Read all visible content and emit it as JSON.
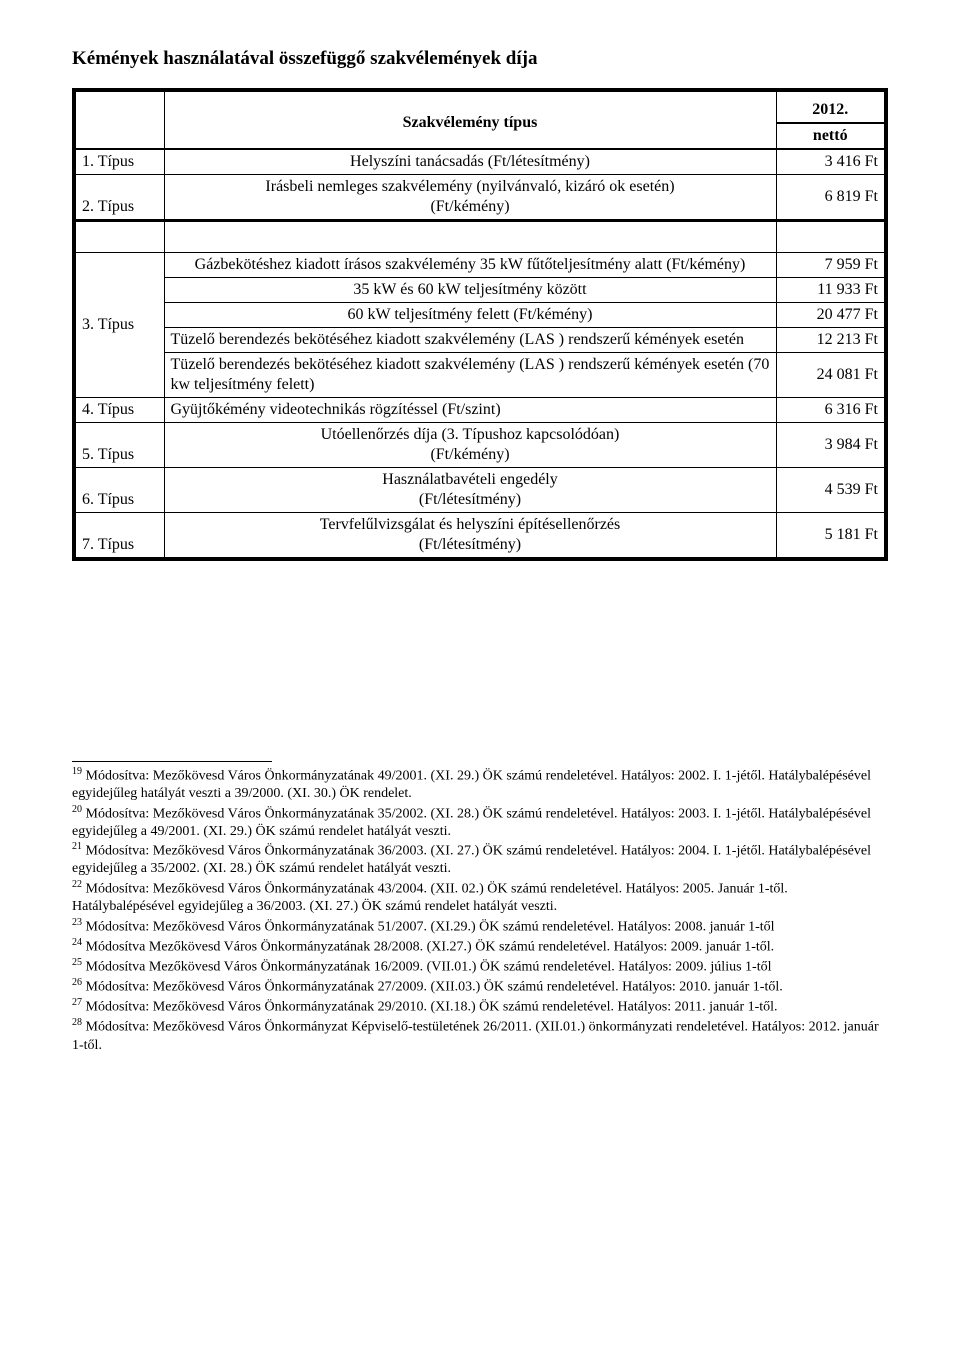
{
  "page_title": "Kémények használatával összefüggő szakvélemények díja",
  "table": {
    "header_col_type": "Szakvélemény típus",
    "header_year": "2012.",
    "header_netto": "nettó",
    "rows_a": [
      {
        "type": "1. Típus",
        "desc": "Helyszíni tanácsadás (Ft/létesítmény)",
        "value": "3 416 Ft"
      },
      {
        "type": "2. Típus",
        "desc": "Irásbeli nemleges szakvélemény (nyilvánvaló, kizáró ok esetén)\n(Ft/kémény)",
        "value": "6 819 Ft"
      }
    ],
    "rows_b_type": "3. Típus",
    "rows_b": [
      {
        "desc": "Gázbekötéshez kiadott írásos szakvélemény 35 kW fűtőteljesítmény alatt (Ft/kémény)",
        "value": "7 959 Ft"
      },
      {
        "desc": "35 kW és 60 kW teljesítmény között",
        "value": "11 933 Ft"
      },
      {
        "desc": "60 kW teljesítmény felett (Ft/kémény)",
        "value": "20 477 Ft"
      },
      {
        "desc": "Tüzelő berendezés bekötéséhez kiadott szakvélemény (LAS ) rendszerű kémények  esetén",
        "value": "12 213 Ft"
      },
      {
        "desc": "Tüzelő berendezés bekötéséhez kiadott szakvélemény (LAS ) rendszerű kémények  esetén (70 kw teljesítmény felett)",
        "value": "24 081 Ft"
      }
    ],
    "rows_c": [
      {
        "type": "4. Típus",
        "desc": "Gyüjtőkémény videotechnikás rögzítéssel (Ft/szint)",
        "value": "6 316 Ft"
      },
      {
        "type": "5. Típus",
        "desc": "Utóellenőrzés díja (3. Típushoz kapcsolódóan)\n(Ft/kémény)",
        "value": "3 984 Ft"
      },
      {
        "type": "6. Típus",
        "desc": "Használatbavételi engedély\n(Ft/létesítmény)",
        "value": "4 539 Ft"
      },
      {
        "type": "7. Típus",
        "desc": "Tervfelűlvizsgálat és helyszíni építésellenőrzés\n(Ft/létesítmény)",
        "value": "5 181 Ft"
      }
    ]
  },
  "footnotes": [
    {
      "num": "19",
      "text": "Módosítva: Mezőkövesd Város Önkormányzatának 49/2001. (XI. 29.) ÖK számú rendeletével. Hatályos: 2002. I. 1-jétől. Hatálybalépésével egyidejűleg hatályát veszti a 39/2000. (XI. 30.) ÖK rendelet."
    },
    {
      "num": "20",
      "text": "Módosítva: Mezőkövesd Város Önkormányzatának 35/2002. (XI. 28.) ÖK számú rendeletével. Hatályos: 2003. I. 1-jétől. Hatálybalépésével egyidejűleg a 49/2001. (XI. 29.) ÖK számú rendelet hatályát veszti."
    },
    {
      "num": "21",
      "text": "Módosítva: Mezőkövesd Város Önkormányzatának 36/2003. (XI. 27.) ÖK számú rendeletével. Hatályos: 2004. I. 1-jétől. Hatálybalépésével egyidejűleg a 35/2002. (XI. 28.) ÖK számú rendelet hatályát veszti."
    },
    {
      "num": "22",
      "text": "Módosítva: Mezőkövesd Város Önkormányzatának 43/2004. (XII. 02.) ÖK számú rendeletével. Hatályos: 2005. Január 1-től. Hatálybalépésével egyidejűleg a 36/2003. (XI. 27.) ÖK számú rendelet hatályát veszti."
    },
    {
      "num": "23",
      "text": "Módosítva: Mezőkövesd Város Önkormányzatának 51/2007. (XI.29.) ÖK számú rendeletével. Hatályos: 2008. január 1-től"
    },
    {
      "num": "24",
      "text": "Módosítva Mezőkövesd Város Önkormányzatának 28/2008. (XI.27.) ÖK számú rendeletével. Hatályos: 2009. január 1-től."
    },
    {
      "num": "25",
      "text": "Módosítva Mezőkövesd Város Önkormányzatának 16/2009. (VII.01.) ÖK számú rendeletével. Hatályos: 2009. július 1-től"
    },
    {
      "num": "26",
      "text": "Módosítva: Mezőkövesd Város Önkormányzatának 27/2009. (XII.03.) ÖK számú rendeletével. Hatályos: 2010. január 1-től."
    },
    {
      "num": "27",
      "text": "Módosítva: Mezőkövesd Város Önkormányzatának 29/2010. (XI.18.) ÖK számú rendeletével. Hatályos: 2011. január 1-től."
    },
    {
      "num": "28",
      "text": "Módosítva: Mezőkövesd Város Önkormányzat Képviselő-testületének 26/2011. (XII.01.) önkormányzati rendeletével. Hatályos: 2012. január 1-től."
    }
  ]
}
